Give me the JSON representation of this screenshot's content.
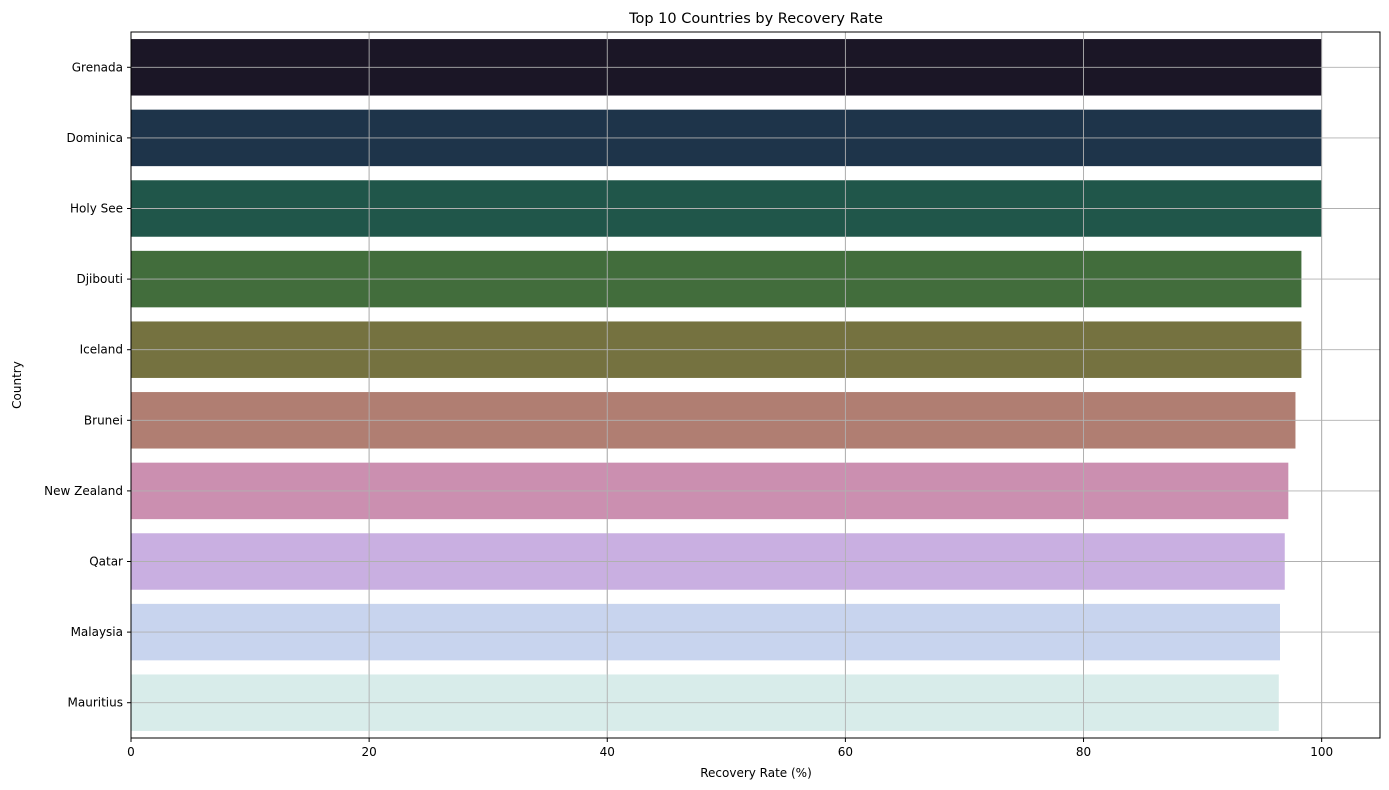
{
  "chart_data": {
    "type": "bar",
    "orientation": "horizontal",
    "title": "Top 10 Countries by Recovery Rate",
    "xlabel": "Recovery Rate (%)",
    "ylabel": "Country",
    "categories": [
      "Grenada",
      "Dominica",
      "Holy See",
      "Djibouti",
      "Iceland",
      "Brunei",
      "New Zealand",
      "Qatar",
      "Malaysia",
      "Mauritius"
    ],
    "values": [
      100,
      100,
      100,
      98.3,
      98.3,
      97.8,
      97.2,
      96.9,
      96.5,
      96.4
    ],
    "colors": [
      "#1b1626",
      "#1e344a",
      "#20564a",
      "#426d3c",
      "#757240",
      "#b07e72",
      "#cb8fb0",
      "#c9afe1",
      "#c8d4ee",
      "#d8ecea"
    ],
    "xlim": [
      0,
      104.9
    ],
    "xticks": [
      0,
      20,
      40,
      60,
      80,
      100
    ],
    "grid": true
  }
}
